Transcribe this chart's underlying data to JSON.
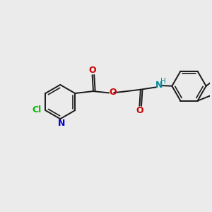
{
  "bg_color": "#ebebeb",
  "bond_color": "#1a1a1a",
  "bond_width": 1.4,
  "cl_color": "#00bb00",
  "n_color": "#0000cc",
  "o_color": "#cc0000",
  "nh_color": "#008899",
  "figsize": [
    3.0,
    3.0
  ],
  "dpi": 100,
  "xlim": [
    0,
    10
  ],
  "ylim": [
    0,
    10
  ]
}
